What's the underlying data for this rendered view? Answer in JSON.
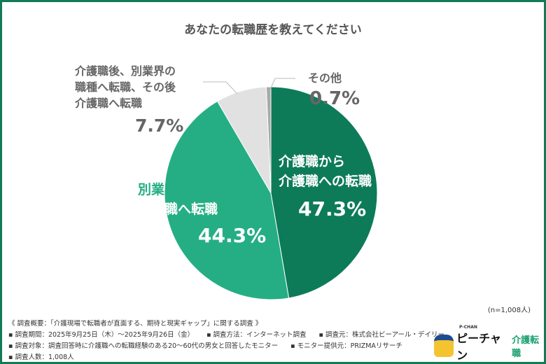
{
  "chart_data": {
    "type": "pie",
    "title": "あなたの転職歴を教えてください",
    "slices": [
      {
        "label": "介護職から介護職への転職",
        "value": 47.3,
        "display": "47.3%",
        "color": "#0d7b58"
      },
      {
        "label": "別業界の職種から介護職へ転職",
        "value": 44.3,
        "display": "44.3%",
        "color": "#25ae83"
      },
      {
        "label": "介護職後、別業界の職種へ転職、その後介護職へ転職",
        "value": 7.7,
        "display": "7.7%",
        "color": "#e1e1e1"
      },
      {
        "label": "その他",
        "value": 0.7,
        "display": "0.7%",
        "color": "#a9a9a9"
      }
    ],
    "start": "12 o'clock",
    "direction": "clockwise"
  },
  "labels": {
    "s0": [
      "介護職から",
      "介護職への転職"
    ],
    "s1": [
      "別業界の職種から",
      "介護職へ転職"
    ],
    "s2": [
      "介護職後、別業界の",
      "職種へ転職、その後",
      "介護職へ転職"
    ],
    "s3": [
      "その他"
    ]
  },
  "sample": "(n=1,008人)",
  "notes": {
    "overview": "《 調査概要：「介護現場で転職者が直面する、期待と現実ギャップ」に関する調査 》",
    "period": "▪ 調査期間：2025年9月25日（木）～2025年9月26日（金）",
    "method": "▪ 調査方法：インターネット調査",
    "source": "▪ 調査元：株式会社ビーアール・デイリー",
    "target": "▪ 調査対象：調査回答時に介護職への転職経験のある20～60代の男女と回答したモニター",
    "provider": "▪ モニター提供元：PRIZMAリサーチ",
    "count": "▪ 調査人数：1,008人"
  },
  "logo": {
    "small": "P-CHAN",
    "main": "ピーチャン",
    "sub": "介護転職"
  }
}
